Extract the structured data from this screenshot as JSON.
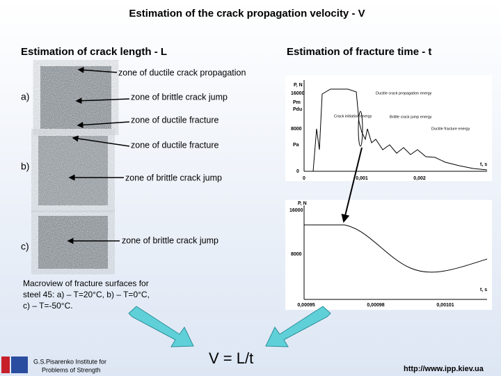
{
  "title": "Estimation of the crack propagation velocity - V",
  "left_heading": "Estimation of crack length - L",
  "right_heading": "Estimation of fracture time - t",
  "specimens": [
    "a)",
    "b)",
    "c)"
  ],
  "zones": [
    "zone of ductile crack propagation",
    "zone of brittle crack jump",
    "zone of ductile fracture",
    "zone of ductile fracture",
    "zone of brittle crack jump",
    "zone of brittle crack jump"
  ],
  "caption": [
    "Macroview of fracture surfaces for",
    "steel 45: a) – T=20°C, b) – T=0°C,",
    "c) – T=-50°C."
  ],
  "formula": "V = L/t",
  "institute": [
    "G.S.Pisarenko Institute for",
    "Problems of Strength"
  ],
  "url": "http://www.ipp.kiev.ua",
  "load_chart": {
    "y_label": "P, N",
    "x_label": "t, s",
    "y_ticks": [
      "16000",
      "Pm",
      "Pdu",
      "8000",
      "Pa",
      "0"
    ],
    "x_ticks": [
      "0",
      "0,001",
      "0,002"
    ],
    "annotations": [
      "Ductile crack propagation energy",
      "Crack initiation energy",
      "Brittle crack jump energy",
      "Ductile fracture energy"
    ]
  },
  "zoom_chart": {
    "y_label": "P, N",
    "x_label": "t, s",
    "y_ticks": [
      "16000",
      "8000"
    ],
    "x_ticks": [
      "0,00095",
      "0,00098",
      "0,00101"
    ]
  }
}
